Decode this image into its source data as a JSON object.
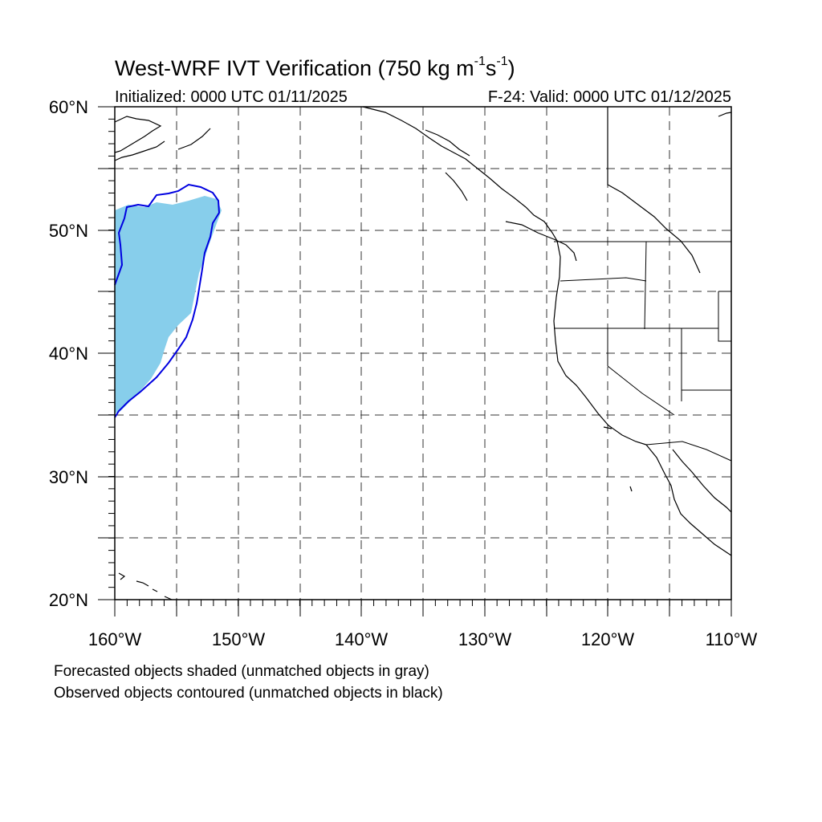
{
  "map": {
    "title_main": "West-WRF IVT Verification (750 kg m",
    "title_exp1": "-1",
    "title_mid": "s",
    "title_exp2": "-1",
    "title_end": ")",
    "init_label": "Initialized: 0000 UTC 01/11/2025",
    "valid_label": "F-24: Valid: 0000 UTC 01/12/2025",
    "lat_labels": [
      "60°N",
      "50°N",
      "40°N",
      "30°N",
      "20°N"
    ],
    "lon_labels": [
      "160°W",
      "150°W",
      "140°W",
      "130°W",
      "120°W",
      "110°W"
    ],
    "extent": {
      "lon_min": -160,
      "lon_max": -110,
      "lat_min": 20,
      "lat_max": 60
    },
    "grid_spacing_deg": 5,
    "forecast_fill_color": "#87ceeb",
    "observed_contour_color": "#0000e0"
  },
  "legend": {
    "line1": "Forecasted objects shaded (unmatched objects in gray)",
    "line2": "Observed objects contoured (unmatched objects in black)"
  }
}
